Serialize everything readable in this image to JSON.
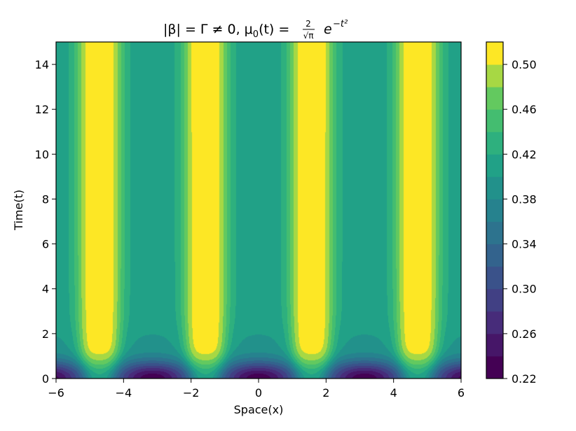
{
  "chart_data": {
    "type": "contourf",
    "title": "|β| = Γ ≠ 0,  μ₀(t) = 2/√π e^(−t²)",
    "title_parts": {
      "lhs": "|β| = Γ ≠ 0,  μ",
      "sub0": "0",
      "mid": "(t) = ",
      "num": "2",
      "den": "√π",
      "exp_base": "e",
      "exp": "−t²"
    },
    "xlabel": "Space(x)",
    "ylabel": "Time(t)",
    "xlim": [
      -6,
      6
    ],
    "ylim": [
      0,
      15
    ],
    "x_ticks": [
      -6,
      -4,
      -2,
      0,
      2,
      4,
      6
    ],
    "x_tick_labels": [
      "−6",
      "−4",
      "−2",
      "0",
      "2",
      "4",
      "6"
    ],
    "y_ticks": [
      0,
      2,
      4,
      6,
      8,
      10,
      12,
      14
    ],
    "y_tick_labels": [
      "0",
      "2",
      "4",
      "6",
      "8",
      "10",
      "12",
      "14"
    ],
    "colormap": "viridis",
    "color_levels": [
      0.22,
      0.24,
      0.26,
      0.28,
      0.3,
      0.32,
      0.34,
      0.36,
      0.38,
      0.4,
      0.42,
      0.44,
      0.46,
      0.48,
      0.5,
      0.52
    ],
    "colorbar_ticks": [
      0.22,
      0.26,
      0.3,
      0.34,
      0.38,
      0.42,
      0.46,
      0.5
    ],
    "colorbar_tick_labels": [
      "0.22",
      "0.26",
      "0.30",
      "0.34",
      "0.38",
      "0.42",
      "0.46",
      "0.50"
    ],
    "ridge_centers_x": [
      -4.71,
      -1.57,
      1.57,
      4.71
    ],
    "background_value": 0.41,
    "peak_value": 0.515
  }
}
